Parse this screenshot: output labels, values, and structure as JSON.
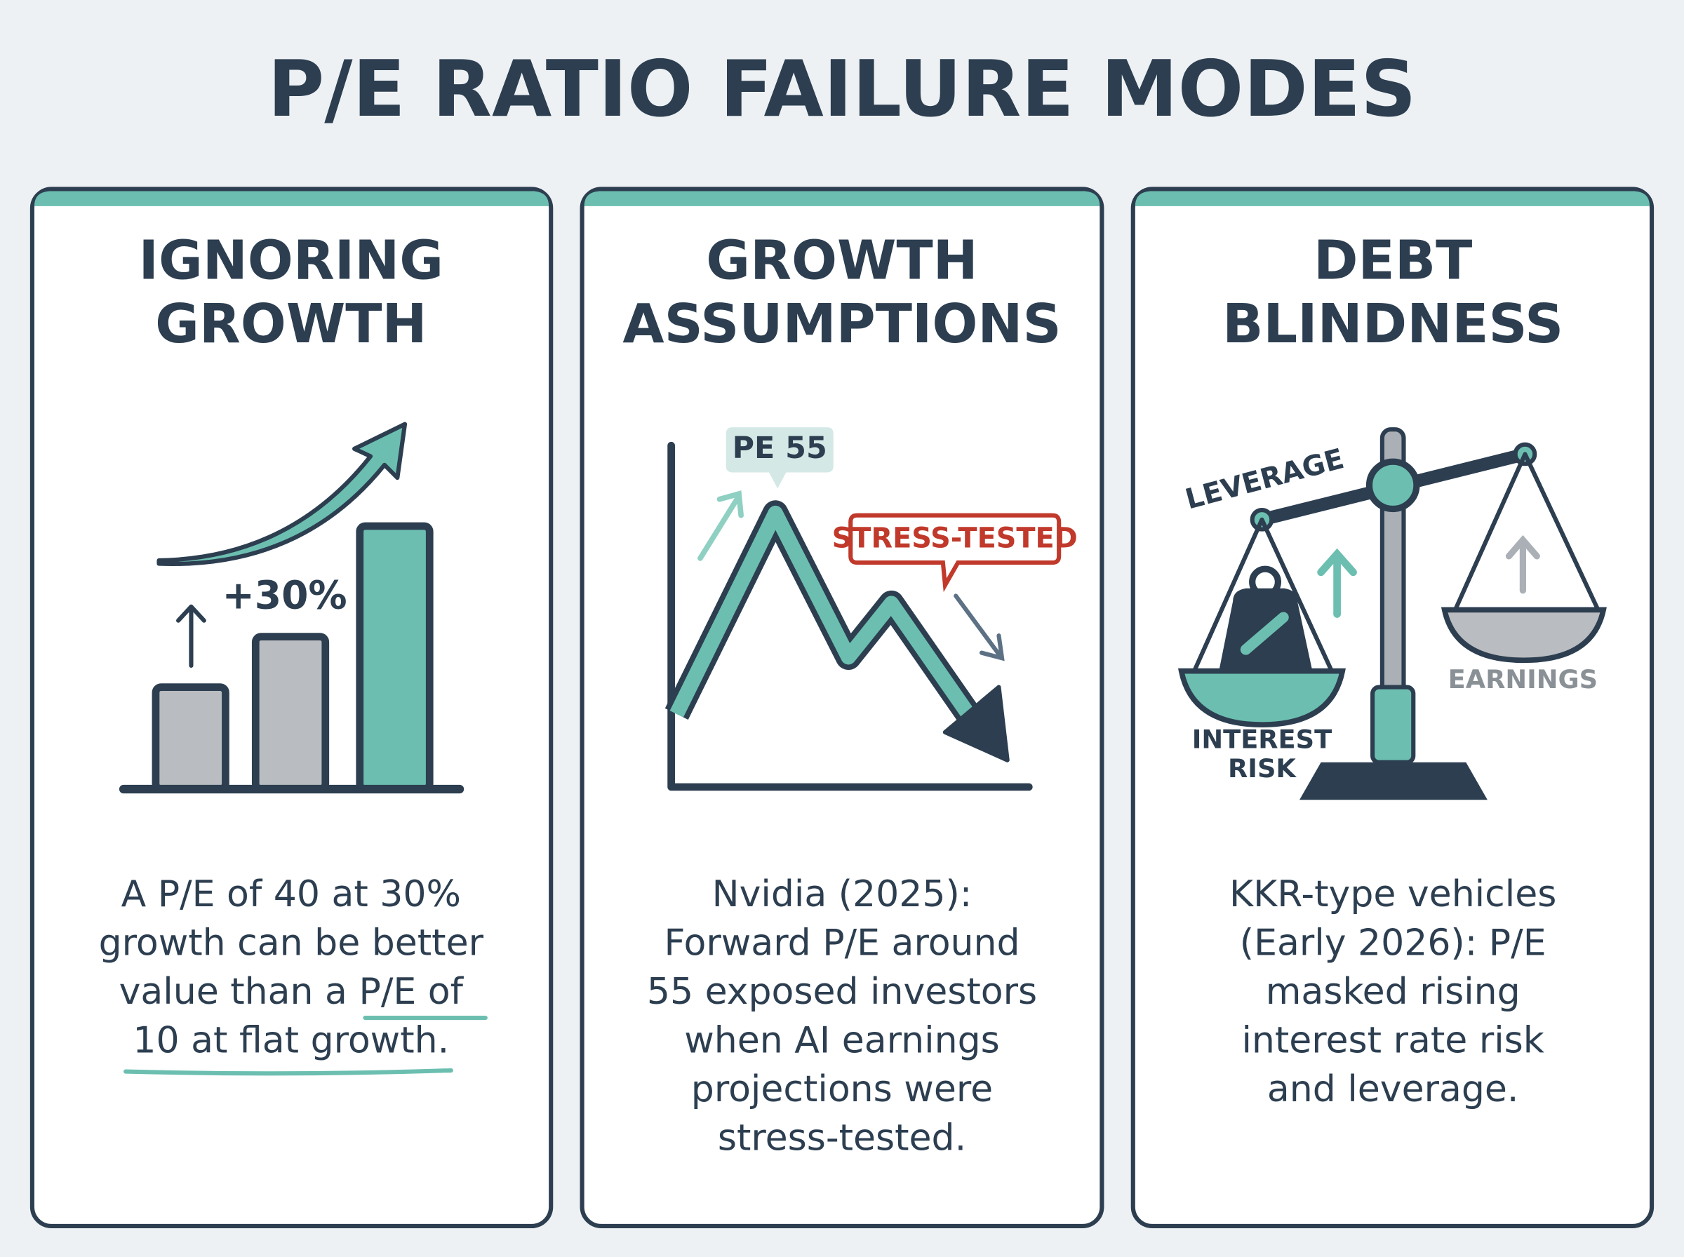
{
  "title": "P/E RATIO FAILURE MODES",
  "panels": [
    {
      "title": [
        "IGNORING",
        "GROWTH"
      ],
      "labels": [
        "+30%"
      ],
      "body": [
        "A P/E of 40 at 30%",
        "growth can be better",
        "value than a P/E of",
        "10 at flat growth."
      ]
    },
    {
      "title": [
        "GROWTH",
        "ASSUMPTIONS"
      ],
      "labels": [
        "PE 55",
        "STRESS-TESTED"
      ],
      "body": [
        "Nvidia (2025):",
        "Forward P/E around",
        "55 exposed investors",
        "when AI earnings",
        "projections were",
        "stress-tested."
      ]
    },
    {
      "title": [
        "DEBT",
        "BLINDNESS"
      ],
      "labels": [
        "LEVERAGE",
        "INTEREST",
        "RISK",
        "EARNINGS"
      ],
      "body": [
        "KKR-type vehicles",
        "(Early 2026): P/E",
        "masked rising",
        "interest rate risk",
        "and leverage."
      ]
    }
  ]
}
